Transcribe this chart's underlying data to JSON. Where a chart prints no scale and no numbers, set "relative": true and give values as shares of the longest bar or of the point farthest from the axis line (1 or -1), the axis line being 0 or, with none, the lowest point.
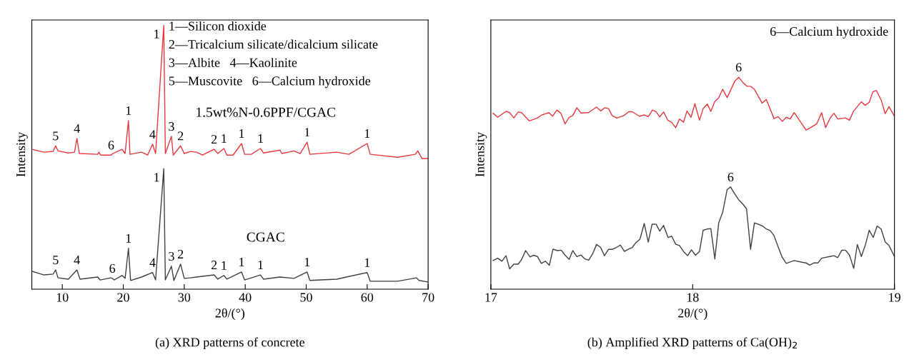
{
  "chart_data": [
    {
      "type": "line",
      "relative": true,
      "title": "(a) XRD patterns of concrete",
      "xlabel": "2θ/(°)",
      "ylabel": "Intensity",
      "xlim": [
        5,
        70
      ],
      "xticks": [
        10,
        20,
        30,
        40,
        50,
        60,
        70
      ],
      "tick_labels": "x",
      "grid": false,
      "legend": false,
      "series": [
        {
          "name": "1.5wt%N-0.6PPF/CGAC",
          "color": "#e8383d",
          "x": [
            5,
            7,
            8.5,
            8.9,
            9.3,
            11,
            12,
            12.4,
            12.8,
            15.8,
            16,
            16.3,
            18,
            18.3,
            19.8,
            20.3,
            20.85,
            21.1,
            23,
            24,
            24.8,
            25.3,
            26.64,
            26.9,
            27.9,
            28.2,
            29.4,
            30,
            31,
            32,
            33,
            34.9,
            35.5,
            36.5,
            37,
            38,
            39.4,
            39.9,
            41,
            42.5,
            43,
            45.7,
            46,
            48,
            49,
            50.15,
            50.6,
            55,
            57,
            60,
            60.5,
            65,
            67.9,
            68.3,
            69,
            70
          ],
          "values": [
            0.53,
            0.519,
            0.522,
            0.543,
            0.524,
            0.516,
            0.519,
            0.571,
            0.514,
            0.511,
            0.519,
            0.508,
            0.508,
            0.514,
            0.53,
            0.514,
            0.639,
            0.511,
            0.519,
            0.508,
            0.549,
            0.514,
            1.0,
            0.514,
            0.579,
            0.508,
            0.543,
            0.514,
            0.522,
            0.519,
            0.508,
            0.53,
            0.514,
            0.533,
            0.508,
            0.508,
            0.552,
            0.511,
            0.511,
            0.533,
            0.516,
            0.527,
            0.514,
            0.524,
            0.514,
            0.557,
            0.511,
            0.519,
            0.511,
            0.552,
            0.511,
            0.5,
            0.511,
            0.524,
            0.495,
            0.495
          ]
        },
        {
          "name": "CGAC",
          "color": "#404040",
          "x": [
            5,
            7,
            8.5,
            8.9,
            9.3,
            11,
            12.4,
            12.9,
            15.8,
            16.2,
            18,
            18.2,
            18.5,
            19.8,
            20.3,
            20.85,
            21.2,
            23,
            24.8,
            25.3,
            26.64,
            26.9,
            27.9,
            28.3,
            29.4,
            30,
            31,
            32,
            34.9,
            35.5,
            36.5,
            37,
            39.4,
            39.9,
            42.5,
            43,
            45.7,
            48,
            50.15,
            50.6,
            55,
            60,
            60.5,
            65,
            68.1,
            68.5,
            70
          ],
          "values": [
            0.068,
            0.054,
            0.057,
            0.073,
            0.043,
            0.038,
            0.073,
            0.038,
            0.046,
            0.035,
            0.043,
            0.041,
            0.035,
            0.052,
            0.041,
            0.155,
            0.033,
            0.046,
            0.063,
            0.035,
            0.457,
            0.035,
            0.087,
            0.033,
            0.095,
            0.041,
            0.043,
            0.046,
            0.054,
            0.038,
            0.052,
            0.038,
            0.065,
            0.035,
            0.054,
            0.038,
            0.046,
            0.041,
            0.065,
            0.033,
            0.038,
            0.063,
            0.03,
            0.03,
            0.043,
            0.033,
            0.027
          ]
        }
      ],
      "annotations": [
        "1—Silicon dioxide",
        "2—Tricalcium silicate/dicalcium silicate",
        "3—Albite   4—Kaolinite",
        "5—Muscovite   6—Calcium hydroxide",
        {
          "text": "5",
          "x": 8.9,
          "y": 0.543
        },
        {
          "text": "4",
          "x": 12.4,
          "y": 0.571
        },
        {
          "text": "6",
          "x": 18,
          "y": 0.508
        },
        {
          "text": "1",
          "x": 20.85,
          "y": 0.639
        },
        {
          "text": "4",
          "x": 24.8,
          "y": 0.549
        },
        {
          "text": "1",
          "x": 26.64,
          "y": 1.0
        },
        {
          "text": "3",
          "x": 27.9,
          "y": 0.579
        },
        {
          "text": "2",
          "x": 29.4,
          "y": 0.543
        },
        {
          "text": "2",
          "x": 34.9,
          "y": 0.53
        },
        {
          "text": "1",
          "x": 36.5,
          "y": 0.533
        },
        {
          "text": "1",
          "x": 39.4,
          "y": 0.552
        },
        {
          "text": "1",
          "x": 42.5,
          "y": 0.533
        },
        {
          "text": "1",
          "x": 50.15,
          "y": 0.557
        },
        {
          "text": "1",
          "x": 60,
          "y": 0.552
        },
        {
          "text": "5",
          "x": 8.9,
          "y": 0.073
        },
        {
          "text": "4",
          "x": 12.4,
          "y": 0.073
        },
        {
          "text": "6",
          "x": 18.2,
          "y": 0.041
        },
        {
          "text": "1",
          "x": 20.85,
          "y": 0.155
        },
        {
          "text": "4",
          "x": 24.8,
          "y": 0.063
        },
        {
          "text": "1",
          "x": 26.64,
          "y": 0.457
        },
        {
          "text": "3",
          "x": 27.9,
          "y": 0.087
        },
        {
          "text": "2",
          "x": 29.4,
          "y": 0.095
        },
        {
          "text": "2",
          "x": 34.9,
          "y": 0.054
        },
        {
          "text": "1",
          "x": 36.5,
          "y": 0.052
        },
        {
          "text": "1",
          "x": 39.4,
          "y": 0.065
        },
        {
          "text": "1",
          "x": 42.5,
          "y": 0.054
        },
        {
          "text": "1",
          "x": 50.15,
          "y": 0.065
        },
        {
          "text": "1",
          "x": 60,
          "y": 0.063
        }
      ]
    },
    {
      "type": "line",
      "relative": true,
      "title": "(b) Amplified XRD patterns of Ca(OH)$_{2}$",
      "xlabel": "2θ/(°)",
      "ylabel": "Intensity",
      "xlim": [
        17,
        19
      ],
      "xticks": [
        17,
        18,
        19
      ],
      "tick_labels": "x",
      "grid": false,
      "legend": false,
      "series": [
        {
          "color": "#e8383d",
          "x": [
            17.011,
            17.034,
            17.075,
            17.093,
            17.114,
            17.135,
            17.152,
            17.19,
            17.229,
            17.253,
            17.288,
            17.306,
            17.327,
            17.347,
            17.368,
            17.388,
            17.406,
            17.426,
            17.447,
            17.483,
            17.524,
            17.544,
            17.565,
            17.583,
            17.601,
            17.624,
            17.659,
            17.683,
            17.701,
            17.736,
            17.76,
            17.78,
            17.801,
            17.819,
            17.837,
            17.856,
            17.878,
            17.896,
            17.916,
            17.935,
            17.955,
            17.972,
            17.992,
            18.011,
            18.034,
            18.052,
            18.073,
            18.09,
            18.11,
            18.128,
            18.149,
            18.171,
            18.208,
            18.228,
            18.25,
            18.27,
            18.288,
            18.306,
            18.344,
            18.365,
            18.403,
            18.424,
            18.444,
            18.464,
            18.483,
            18.503,
            18.562,
            18.58,
            18.615,
            18.639,
            18.659,
            18.68,
            18.7,
            18.719,
            18.757,
            18.777,
            18.798,
            18.836,
            18.855,
            18.875,
            18.893,
            18.91,
            18.934,
            18.954,
            18.973,
            19.0
          ],
          "values": [
            0.83,
            0.811,
            0.839,
            0.833,
            0.808,
            0.836,
            0.833,
            0.794,
            0.807,
            0.822,
            0.833,
            0.816,
            0.845,
            0.83,
            0.78,
            0.811,
            0.819,
            0.856,
            0.831,
            0.833,
            0.859,
            0.841,
            0.856,
            0.852,
            0.819,
            0.807,
            0.819,
            0.837,
            0.837,
            0.816,
            0.822,
            0.814,
            0.845,
            0.837,
            0.813,
            0.836,
            0.796,
            0.787,
            0.762,
            0.803,
            0.788,
            0.841,
            0.811,
            0.875,
            0.797,
            0.852,
            0.873,
            0.839,
            0.886,
            0.901,
            0.943,
            0.904,
            0.98,
            1.0,
            0.974,
            0.957,
            0.957,
            0.943,
            0.878,
            0.895,
            0.805,
            0.814,
            0.792,
            0.811,
            0.803,
            0.833,
            0.751,
            0.76,
            0.78,
            0.833,
            0.762,
            0.805,
            0.83,
            0.803,
            0.808,
            0.797,
            0.841,
            0.884,
            0.867,
            0.882,
            0.931,
            0.938,
            0.893,
            0.828,
            0.861,
            0.816
          ]
        },
        {
          "color": "#404040",
          "x": [
            17.011,
            17.034,
            17.055,
            17.075,
            17.093,
            17.114,
            17.135,
            17.152,
            17.172,
            17.194,
            17.211,
            17.231,
            17.25,
            17.27,
            17.29,
            17.308,
            17.329,
            17.349,
            17.368,
            17.388,
            17.406,
            17.426,
            17.447,
            17.465,
            17.485,
            17.504,
            17.524,
            17.544,
            17.563,
            17.583,
            17.603,
            17.622,
            17.642,
            17.662,
            17.681,
            17.701,
            17.719,
            17.739,
            17.76,
            17.78,
            17.799,
            17.819,
            17.837,
            17.856,
            17.878,
            17.896,
            17.916,
            17.935,
            17.955,
            17.975,
            17.994,
            18.014,
            18.034,
            18.052,
            18.073,
            18.09,
            18.11,
            18.129,
            18.149,
            18.171,
            18.188,
            18.208,
            18.228,
            18.25,
            18.267,
            18.287,
            18.306,
            18.326,
            18.346,
            18.365,
            18.385,
            18.403,
            18.424,
            18.444,
            18.464,
            18.503,
            18.542,
            18.562,
            18.58,
            18.601,
            18.621,
            18.639,
            18.68,
            18.7,
            18.719,
            18.739,
            18.757,
            18.777,
            18.798,
            18.816,
            18.836,
            18.855,
            18.875,
            18.895,
            18.914,
            18.934,
            18.954,
            18.973,
            19.0
          ],
          "values": [
            0.135,
            0.146,
            0.132,
            0.158,
            0.096,
            0.118,
            0.118,
            0.139,
            0.182,
            0.152,
            0.16,
            0.154,
            0.122,
            0.132,
            0.113,
            0.189,
            0.182,
            0.184,
            0.16,
            0.141,
            0.182,
            0.154,
            0.161,
            0.143,
            0.137,
            0.166,
            0.211,
            0.197,
            0.158,
            0.188,
            0.188,
            0.197,
            0.208,
            0.178,
            0.188,
            0.197,
            0.22,
            0.236,
            0.31,
            0.222,
            0.307,
            0.306,
            0.274,
            0.301,
            0.244,
            0.25,
            0.212,
            0.206,
            0.177,
            0.158,
            0.186,
            0.16,
            0.178,
            0.278,
            0.284,
            0.286,
            0.143,
            0.312,
            0.364,
            0.47,
            0.482,
            0.45,
            0.422,
            0.4,
            0.379,
            0.188,
            0.313,
            0.306,
            0.298,
            0.284,
            0.276,
            0.253,
            0.199,
            0.15,
            0.122,
            0.135,
            0.127,
            0.124,
            0.113,
            0.124,
            0.124,
            0.146,
            0.154,
            0.158,
            0.149,
            0.184,
            0.184,
            0.161,
            0.098,
            0.211,
            0.154,
            0.206,
            0.278,
            0.244,
            0.298,
            0.284,
            0.223,
            0.206,
            0.154
          ]
        }
      ],
      "annotations": [
        "6—Calcium hydroxide",
        {
          "text": "6",
          "x": 18.228,
          "y": 1.0
        },
        {
          "text": "6",
          "x": 18.188,
          "y": 0.482
        }
      ]
    }
  ]
}
